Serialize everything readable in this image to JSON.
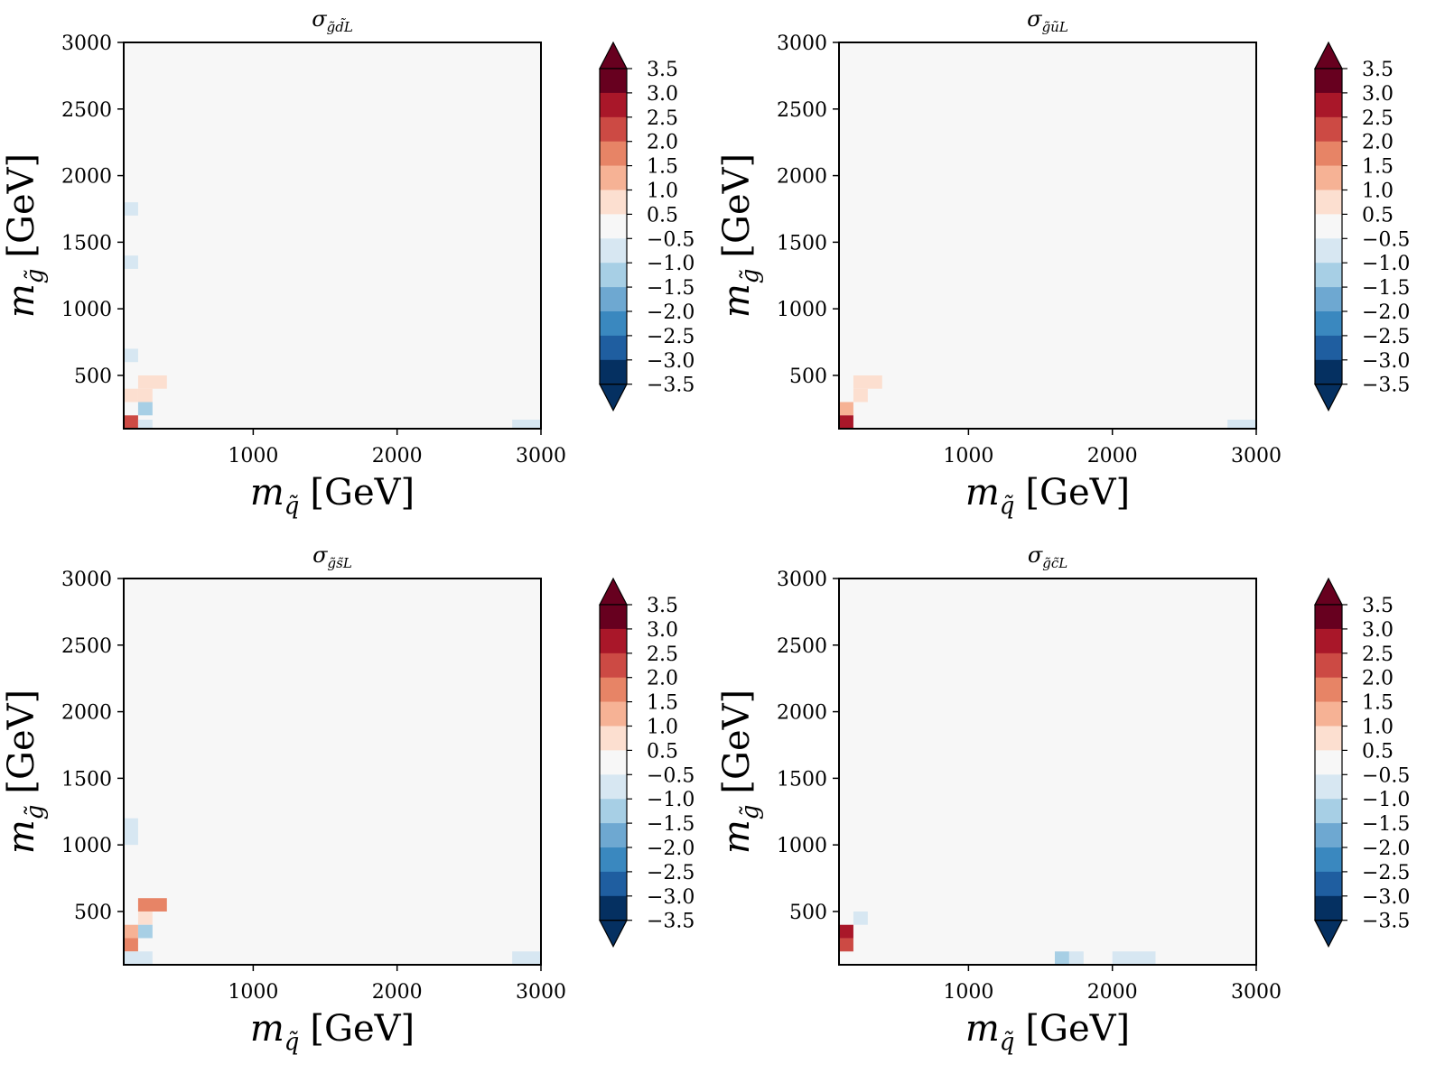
{
  "colorbar": {
    "levels": [
      "3.5",
      "3.0",
      "2.5",
      "2.0",
      "1.5",
      "1.0",
      "0.5",
      "−0.5",
      "−1.0",
      "−1.5",
      "−2.0",
      "−2.5",
      "−3.0",
      "−3.5"
    ],
    "bounds": [
      -3.5,
      -3.0,
      -2.5,
      -2.0,
      -1.5,
      -1.0,
      -0.5,
      0.5,
      1.0,
      1.5,
      2.0,
      2.5,
      3.0,
      3.5
    ],
    "colors": [
      "#053061",
      "#053061",
      "#1f5ea0",
      "#3a88bf",
      "#6ea8d1",
      "#a7cfe5",
      "#d7e7f2",
      "#f7f7f7",
      "#fcdfd0",
      "#f6b295",
      "#e78466",
      "#cc4a44",
      "#a91729",
      "#67001f",
      "#67001f"
    ]
  },
  "chart_data": [
    {
      "type": "heatmap",
      "title_symbol": "σ",
      "title_sub_a": "g̃",
      "title_sub_b": "d̃",
      "title_sub_c": "L",
      "xlabel_sym": "m",
      "xlabel_sub": "q̃",
      "xlabel_unit": "[GeV]",
      "ylabel_sym": "m",
      "ylabel_sub": "g̃",
      "ylabel_unit": "[GeV]",
      "xlim": [
        100,
        3000
      ],
      "ylim": [
        100,
        3000
      ],
      "xticks": [
        "1000",
        "2000",
        "3000"
      ],
      "xtick_values": [
        1000,
        2000,
        3000
      ],
      "yticks": [
        "500",
        "1000",
        "1500",
        "2000",
        "2500",
        "3000"
      ],
      "ytick_values": [
        500,
        1000,
        1500,
        2000,
        2500,
        3000
      ],
      "cell_size": 100,
      "background_value": 0,
      "cells": [
        {
          "x0": 100,
          "x1": 200,
          "y0": 1700,
          "y1": 1800,
          "v": -0.7
        },
        {
          "x0": 100,
          "x1": 200,
          "y0": 1300,
          "y1": 1400,
          "v": -0.7
        },
        {
          "x0": 100,
          "x1": 200,
          "y0": 600,
          "y1": 700,
          "v": -0.7
        },
        {
          "x0": 200,
          "x1": 400,
          "y0": 400,
          "y1": 500,
          "v": 0.7
        },
        {
          "x0": 200,
          "x1": 300,
          "y0": 300,
          "y1": 400,
          "v": 0.7
        },
        {
          "x0": 100,
          "x1": 200,
          "y0": 300,
          "y1": 400,
          "v": 0.7
        },
        {
          "x0": 200,
          "x1": 300,
          "y0": 200,
          "y1": 300,
          "v": -1.2
        },
        {
          "x0": 100,
          "x1": 200,
          "y0": 100,
          "y1": 200,
          "v": 2.2
        },
        {
          "x0": 200,
          "x1": 300,
          "y0": 100,
          "y1": 100,
          "v": -0.7
        },
        {
          "x0": 2800,
          "x1": 3000,
          "y0": 100,
          "y1": 100,
          "v": -0.7
        }
      ]
    },
    {
      "type": "heatmap",
      "title_symbol": "σ",
      "title_sub_a": "g̃",
      "title_sub_b": "ũ",
      "title_sub_c": "L",
      "xlabel_sym": "m",
      "xlabel_sub": "q̃",
      "xlabel_unit": "[GeV]",
      "ylabel_sym": "m",
      "ylabel_sub": "g̃",
      "ylabel_unit": "[GeV]",
      "xlim": [
        100,
        3000
      ],
      "ylim": [
        100,
        3000
      ],
      "xticks": [
        "1000",
        "2000",
        "3000"
      ],
      "xtick_values": [
        1000,
        2000,
        3000
      ],
      "yticks": [
        "500",
        "1000",
        "1500",
        "2000",
        "2500",
        "3000"
      ],
      "ytick_values": [
        500,
        1000,
        1500,
        2000,
        2500,
        3000
      ],
      "cell_size": 100,
      "background_value": 0,
      "cells": [
        {
          "x0": 200,
          "x1": 400,
          "y0": 400,
          "y1": 500,
          "v": 0.7
        },
        {
          "x0": 200,
          "x1": 300,
          "y0": 300,
          "y1": 400,
          "v": 0.7
        },
        {
          "x0": 100,
          "x1": 200,
          "y0": 200,
          "y1": 300,
          "v": 1.2
        },
        {
          "x0": 100,
          "x1": 200,
          "y0": 100,
          "y1": 200,
          "v": 2.7
        },
        {
          "x0": 2800,
          "x1": 3000,
          "y0": 100,
          "y1": 100,
          "v": -0.7
        }
      ]
    },
    {
      "type": "heatmap",
      "title_symbol": "σ",
      "title_sub_a": "g̃",
      "title_sub_b": "s̃",
      "title_sub_c": "L",
      "xlabel_sym": "m",
      "xlabel_sub": "q̃",
      "xlabel_unit": "[GeV]",
      "ylabel_sym": "m",
      "ylabel_sub": "g̃",
      "ylabel_unit": "[GeV]",
      "xlim": [
        100,
        3000
      ],
      "ylim": [
        100,
        3000
      ],
      "xticks": [
        "1000",
        "2000",
        "3000"
      ],
      "xtick_values": [
        1000,
        2000,
        3000
      ],
      "yticks": [
        "500",
        "1000",
        "1500",
        "2000",
        "2500",
        "3000"
      ],
      "ytick_values": [
        500,
        1000,
        1500,
        2000,
        2500,
        3000
      ],
      "cell_size": 100,
      "background_value": 0,
      "cells": [
        {
          "x0": 100,
          "x1": 200,
          "y0": 1000,
          "y1": 1200,
          "v": -0.7
        },
        {
          "x0": 200,
          "x1": 400,
          "y0": 500,
          "y1": 600,
          "v": 1.7
        },
        {
          "x0": 200,
          "x1": 300,
          "y0": 400,
          "y1": 500,
          "v": 0.7
        },
        {
          "x0": 200,
          "x1": 300,
          "y0": 300,
          "y1": 400,
          "v": -1.2
        },
        {
          "x0": 100,
          "x1": 200,
          "y0": 300,
          "y1": 400,
          "v": 1.2
        },
        {
          "x0": 100,
          "x1": 200,
          "y0": 200,
          "y1": 300,
          "v": 1.7
        },
        {
          "x0": 100,
          "x1": 300,
          "y0": 100,
          "y1": 200,
          "v": -0.7
        },
        {
          "x0": 2800,
          "x1": 3000,
          "y0": 100,
          "y1": 200,
          "v": -0.7
        }
      ]
    },
    {
      "type": "heatmap",
      "title_symbol": "σ",
      "title_sub_a": "g̃",
      "title_sub_b": "c̃",
      "title_sub_c": "L",
      "xlabel_sym": "m",
      "xlabel_sub": "q̃",
      "xlabel_unit": "[GeV]",
      "ylabel_sym": "m",
      "ylabel_sub": "g̃",
      "ylabel_unit": "[GeV]",
      "xlim": [
        100,
        3000
      ],
      "ylim": [
        100,
        3000
      ],
      "xticks": [
        "1000",
        "2000",
        "3000"
      ],
      "xtick_values": [
        1000,
        2000,
        3000
      ],
      "yticks": [
        "500",
        "1000",
        "1500",
        "2000",
        "2500",
        "3000"
      ],
      "ytick_values": [
        500,
        1000,
        1500,
        2000,
        2500,
        3000
      ],
      "cell_size": 100,
      "background_value": 0,
      "cells": [
        {
          "x0": 200,
          "x1": 300,
          "y0": 400,
          "y1": 500,
          "v": -0.7
        },
        {
          "x0": 100,
          "x1": 200,
          "y0": 300,
          "y1": 400,
          "v": 2.7
        },
        {
          "x0": 100,
          "x1": 200,
          "y0": 200,
          "y1": 300,
          "v": 2.2
        },
        {
          "x0": 1600,
          "x1": 1700,
          "y0": 100,
          "y1": 200,
          "v": -1.2
        },
        {
          "x0": 1700,
          "x1": 1800,
          "y0": 100,
          "y1": 200,
          "v": -0.7
        },
        {
          "x0": 2000,
          "x1": 2300,
          "y0": 100,
          "y1": 200,
          "v": -0.7
        }
      ]
    }
  ]
}
